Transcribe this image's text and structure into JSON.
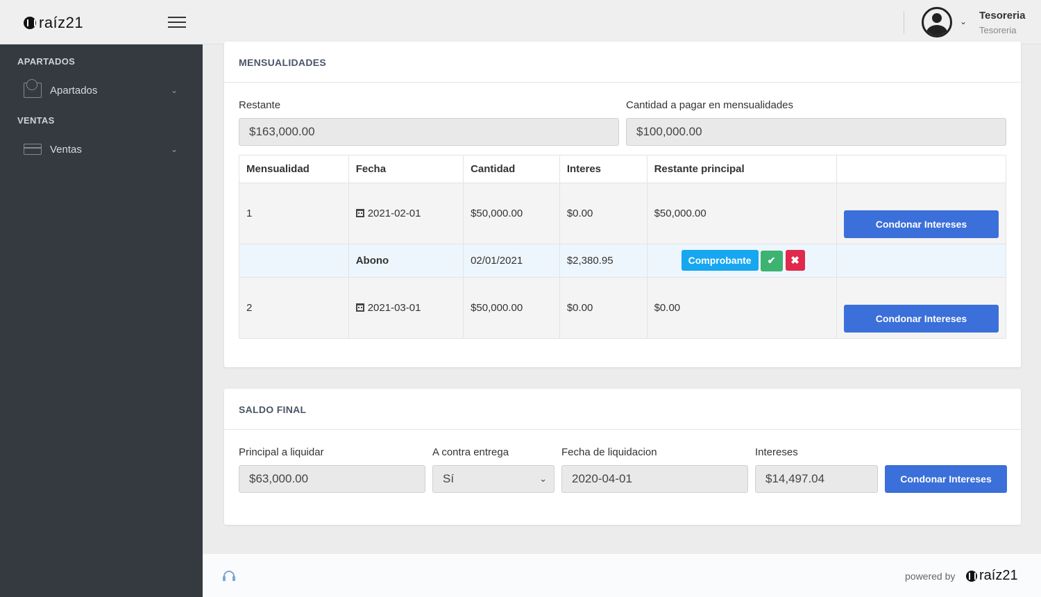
{
  "brand": {
    "name": "raíz21"
  },
  "header": {
    "user_name": "Tesoreria",
    "user_role": "Tesoreria"
  },
  "sidebar": {
    "sections": [
      {
        "title": "APARTADOS",
        "item": "Apartados",
        "icon": "envelope-icon"
      },
      {
        "title": "VENTAS",
        "item": "Ventas",
        "icon": "credit-card-icon"
      }
    ]
  },
  "mensualidades": {
    "title": "MENSUALIDADES",
    "restante_label": "Restante",
    "restante_value": "$163,000.00",
    "cantidad_label": "Cantidad a pagar en mensualidades",
    "cantidad_value": "$100,000.00",
    "columns": [
      "Mensualidad",
      "Fecha",
      "Cantidad",
      "Interes",
      "Restante principal"
    ],
    "rows": [
      {
        "mensualidad": "1",
        "fecha": "2021-02-01",
        "cantidad": "$50,000.00",
        "interes": "$0.00",
        "restante": "$50,000.00",
        "button": "Condonar Intereses"
      },
      {
        "mensualidad": "2",
        "fecha": "2021-03-01",
        "cantidad": "$50,000.00",
        "interes": "$0.00",
        "restante": "$0.00",
        "button": "Condonar Intereses"
      }
    ],
    "abono": {
      "label": "Abono",
      "fecha": "02/01/2021",
      "cantidad": "$2,380.95",
      "comprobante": "Comprobante"
    }
  },
  "saldo_final": {
    "title": "SALDO FINAL",
    "principal_label": "Principal a liquidar",
    "principal_value": "$63,000.00",
    "contra_label": "A contra entrega",
    "contra_value": "Sí",
    "fecha_label": "Fecha de liquidacion",
    "fecha_value": "2020-04-01",
    "intereses_label": "Intereses",
    "intereses_value": "$14,497.04",
    "button": "Condonar Intereses"
  },
  "footer": {
    "powered_by": "powered by",
    "brand": "raíz21"
  },
  "colors": {
    "sidebar": "#353a40",
    "primary": "#3b6fd9",
    "info": "#17a6f0",
    "success": "#3cb371",
    "danger": "#e0294d"
  }
}
